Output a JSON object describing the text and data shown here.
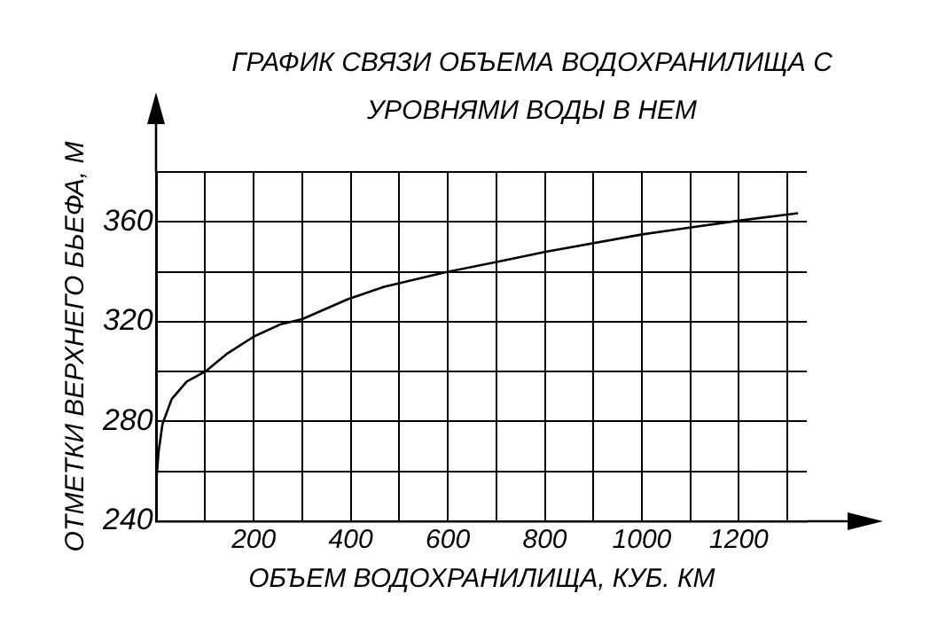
{
  "chart_data": {
    "type": "line",
    "title": "ГРАФИК СВЯЗИ ОБЪЕМА ВОДОХРАНИЛИЩА С УРОВНЯМИ ВОДЫ В НЕМ",
    "xlabel": "ОБЪЕМ ВОДОХРАНИЛИЩА, КУБ. КМ",
    "ylabel": "ОТМЕТКИ ВЕРХНЕГО БЬЕФА, М",
    "x": [
      0,
      4,
      12,
      31,
      62,
      100,
      144,
      200,
      256,
      300,
      394,
      469,
      600,
      703,
      802,
      1001,
      1200,
      1322
    ],
    "series": [
      {
        "color": "#000000",
        "values": [
          258,
          268,
          279,
          289,
          296,
          300,
          307,
          314,
          319,
          321,
          329,
          334,
          340,
          344,
          348,
          355,
          360.5,
          363.5
        ]
      }
    ],
    "xlim": [
      0,
      1340
    ],
    "xticks": [
      {
        "value": 0,
        "label": null
      },
      {
        "value": 100,
        "label": null
      },
      200,
      {
        "value": 300,
        "label": null
      },
      400,
      {
        "value": 500,
        "label": null
      },
      600,
      {
        "value": 700,
        "label": null
      },
      800,
      {
        "value": 900,
        "label": null
      },
      1000,
      {
        "value": 1100,
        "label": null
      },
      1200,
      {
        "value": 1300,
        "label": null
      }
    ],
    "ylim": [
      240,
      380
    ],
    "yticks": [
      240,
      {
        "value": 260,
        "label": null
      },
      280,
      {
        "value": 300,
        "label": null
      },
      320,
      {
        "value": 340,
        "label": null
      },
      360,
      {
        "value": 380,
        "label": null
      }
    ],
    "grid": true,
    "legend": false,
    "marker": "none",
    "line_style": "solid"
  }
}
